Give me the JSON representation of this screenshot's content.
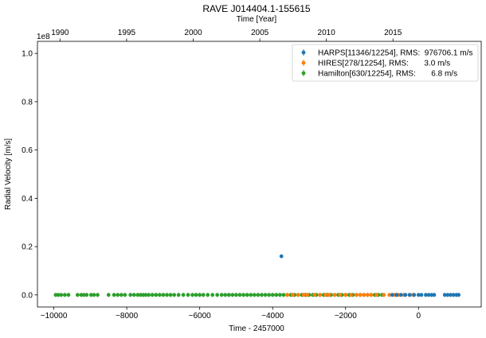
{
  "chart_data": {
    "type": "scatter",
    "title": "RAVE J014404.1-155615",
    "xlabel": "Time - 2457000",
    "ylabel": "Radial Velocity [m/s]",
    "top_xlabel": "Time [Year]",
    "y_offset_label": "1e8",
    "xlim": [
      -10450,
      1720
    ],
    "ylim": [
      -5000000,
      105000000
    ],
    "x_ticks": [
      -10000,
      -8000,
      -6000,
      -4000,
      -2000,
      0
    ],
    "x_tick_labels": [
      "−10000",
      "−8000",
      "−6000",
      "−4000",
      "−2000",
      "0"
    ],
    "y_ticks": [
      0,
      20000000,
      40000000,
      60000000,
      80000000,
      100000000
    ],
    "y_tick_labels": [
      "0.0",
      "0.2",
      "0.4",
      "0.6",
      "0.8",
      "1.0"
    ],
    "top_ticks": [
      -9831,
      -8005,
      -6178,
      -4352,
      -2526,
      -700
    ],
    "top_tick_labels": [
      "1990",
      "1995",
      "2000",
      "2005",
      "2010",
      "2015"
    ],
    "grid": false,
    "legend_position": "top-right",
    "series": [
      {
        "name": "HARPS[11346/12254], RMS:  976706.1 m/s",
        "color": "#1f77b4",
        "x": [
          -3760,
          -720,
          -600,
          -480,
          -360,
          -240,
          -120,
          0,
          80,
          200,
          280,
          360,
          430,
          720,
          800,
          880,
          960,
          1040,
          1100
        ],
        "y": [
          16000000,
          0,
          0,
          0,
          0,
          0,
          0,
          0,
          0,
          0,
          0,
          0,
          0,
          0,
          0,
          0,
          0,
          0,
          0
        ]
      },
      {
        "name": "HIRES[278/12254], RMS:       3.0 m/s",
        "color": "#ff7f0e",
        "x": [
          -3600,
          -3450,
          -3300,
          -3150,
          -3050,
          -2850,
          -2700,
          -2550,
          -2450,
          -2300,
          -2150,
          -2000,
          -1850,
          -1700,
          -1600,
          -1500,
          -1400,
          -1300,
          -1150,
          -950,
          -800,
          -650,
          -550,
          -400,
          -250,
          -150
        ],
        "y": [
          0,
          0,
          0,
          0,
          0,
          0,
          0,
          0,
          0,
          0,
          0,
          0,
          0,
          0,
          0,
          0,
          0,
          0,
          0,
          0,
          0,
          0,
          0,
          0,
          0,
          0
        ]
      },
      {
        "name": "Hamilton[630/12254], RMS:       6.8 m/s",
        "color": "#2ca02c",
        "x": [
          -9950,
          -9880,
          -9800,
          -9700,
          -9600,
          -9350,
          -9250,
          -9180,
          -9100,
          -8980,
          -8900,
          -8800,
          -8500,
          -8350,
          -8250,
          -8150,
          -8050,
          -7900,
          -7800,
          -7700,
          -7620,
          -7550,
          -7480,
          -7400,
          -7300,
          -7200,
          -7100,
          -7000,
          -6900,
          -6800,
          -6700,
          -6580,
          -6450,
          -6320,
          -6200,
          -6100,
          -6000,
          -5900,
          -5780,
          -5650,
          -5520,
          -5400,
          -5300,
          -5200,
          -5100,
          -5000,
          -4900,
          -4800,
          -4700,
          -4600,
          -4500,
          -4400,
          -4300,
          -4200,
          -4100,
          -4000,
          -3900,
          -3800,
          -3700,
          -3600,
          -3500,
          -3400,
          -3300,
          -3200,
          -3100,
          -3000,
          -2900,
          -2800,
          -2700,
          -2600,
          -2500,
          -2400,
          -2300,
          -2200,
          -2100,
          -2000,
          -1900,
          -1800,
          -1700,
          -1600,
          -1500,
          -1400,
          -1300,
          -1200,
          -1100,
          -1000
        ],
        "y": [
          0,
          0,
          0,
          0,
          0,
          0,
          0,
          0,
          0,
          0,
          0,
          0,
          0,
          0,
          0,
          0,
          0,
          0,
          0,
          0,
          0,
          0,
          0,
          0,
          0,
          0,
          0,
          0,
          0,
          0,
          0,
          0,
          0,
          0,
          0,
          0,
          0,
          0,
          0,
          0,
          0,
          0,
          0,
          0,
          0,
          0,
          0,
          0,
          0,
          0,
          0,
          0,
          0,
          0,
          0,
          0,
          0,
          0,
          0,
          0,
          0,
          0,
          0,
          0,
          0,
          0,
          0,
          0,
          0,
          0,
          0,
          0,
          0,
          0,
          0,
          0,
          0,
          0,
          0,
          0,
          0,
          0,
          0,
          0,
          0,
          0
        ]
      }
    ]
  }
}
